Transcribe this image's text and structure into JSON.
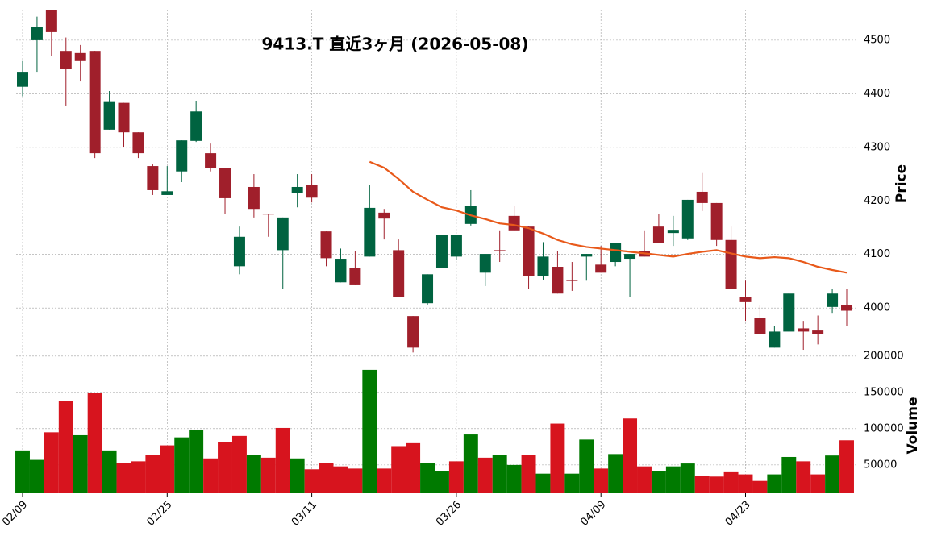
{
  "chart_data": {
    "type": "candlestick",
    "title": "9413.T  直近3ヶ月  (2026-05-08)",
    "categories": [
      "02/09",
      null,
      null,
      null,
      null,
      null,
      null,
      null,
      null,
      null,
      "02/25",
      null,
      null,
      null,
      null,
      null,
      null,
      null,
      null,
      null,
      "03/11",
      null,
      null,
      null,
      null,
      null,
      null,
      null,
      null,
      null,
      "03/26",
      null,
      null,
      null,
      null,
      null,
      null,
      null,
      null,
      null,
      "04/09",
      null,
      null,
      null,
      null,
      null,
      null,
      null,
      null,
      null,
      "04/23",
      null,
      null,
      null,
      null,
      null,
      null,
      null
    ],
    "open": [
      4413,
      4500,
      4556,
      4480,
      4476,
      4480,
      4333,
      4383,
      4328,
      4265,
      4211,
      4255,
      4312,
      4289,
      4261,
      4078,
      4226,
      4176,
      4108,
      4215,
      4230,
      4143,
      4048,
      4074,
      4096,
      4178,
      4108,
      3985,
      4009,
      4074,
      4096,
      4157,
      4066,
      4108,
      4172,
      4152,
      4060,
      4077,
      4052,
      4096,
      4081,
      4086,
      4092,
      4107,
      4152,
      4140,
      4130,
      4217,
      4196,
      4127,
      4021,
      3982,
      3926,
      3956,
      3962,
      3958,
      4002,
      4006
    ],
    "high": [
      4461,
      4544,
      4557,
      4505,
      4491,
      4480,
      4405,
      4383,
      4328,
      4268,
      4265,
      4313,
      4387,
      4307,
      4261,
      4152,
      4250,
      4176,
      4169,
      4250,
      4250,
      4143,
      4111,
      4107,
      4230,
      4185,
      4128,
      3985,
      4063,
      4137,
      4137,
      4220,
      4101,
      4145,
      4191,
      4152,
      4123,
      4107,
      4086,
      4101,
      4116,
      4122,
      4101,
      4145,
      4176,
      4172,
      4202,
      4252,
      4196,
      4152,
      4051,
      4006,
      3967,
      4027,
      3976,
      3986,
      4036,
      4036
    ],
    "low": [
      4395,
      4441,
      4471,
      4378,
      4423,
      4280,
      4333,
      4301,
      4280,
      4211,
      4211,
      4235,
      4310,
      4255,
      4176,
      4063,
      4169,
      4133,
      4035,
      4188,
      4197,
      4078,
      4048,
      4044,
      4096,
      4128,
      4020,
      3917,
      4005,
      4074,
      4090,
      4154,
      4041,
      4086,
      4145,
      4036,
      4053,
      4027,
      4032,
      4051,
      4066,
      4078,
      4021,
      4096,
      4122,
      4116,
      4127,
      4181,
      4116,
      4036,
      3976,
      3952,
      3926,
      3956,
      3922,
      3932,
      3991,
      3967
    ],
    "close": [
      4441,
      4524,
      4515,
      4446,
      4461,
      4289,
      4386,
      4328,
      4289,
      4220,
      4218,
      4313,
      4367,
      4261,
      4205,
      4133,
      4185,
      4175,
      4169,
      4226,
      4206,
      4093,
      4092,
      4044,
      4187,
      4167,
      4020,
      3926,
      4063,
      4137,
      4136,
      4191,
      4101,
      4107,
      4145,
      4060,
      4096,
      4027,
      4051,
      4101,
      4066,
      4122,
      4101,
      4096,
      4122,
      4146,
      4202,
      4196,
      4127,
      4036,
      4011,
      3952,
      3956,
      4027,
      3956,
      3952,
      4027,
      3995
    ],
    "up_color": "#006340",
    "down_color": "#a01f2b",
    "ylim": [
      3913,
      4557
    ],
    "yticks": [
      4000,
      4100,
      4200,
      4300,
      4400,
      4500
    ],
    "ylabel": "Price",
    "grid": true,
    "moving_average": {
      "color": "#e8591a",
      "values": [
        null,
        null,
        null,
        null,
        null,
        null,
        null,
        null,
        null,
        null,
        null,
        null,
        null,
        null,
        null,
        null,
        null,
        null,
        null,
        null,
        null,
        null,
        null,
        null,
        4273,
        4262,
        4241,
        4217,
        4202,
        4188,
        4182,
        4173,
        4166,
        4158,
        4155,
        4149,
        4139,
        4127,
        4119,
        4114,
        4111,
        4108,
        4105,
        4102,
        4099,
        4096,
        4101,
        4105,
        4108,
        4102,
        4096,
        4093,
        4095,
        4093,
        4086,
        4077,
        4071,
        4066
      ]
    },
    "volume": {
      "values": [
        70000,
        57000,
        95000,
        138000,
        91000,
        149000,
        70000,
        53000,
        55000,
        64000,
        77000,
        88000,
        98000,
        59000,
        82000,
        90000,
        64000,
        60000,
        101000,
        59000,
        44000,
        53000,
        48000,
        45000,
        181000,
        45000,
        76000,
        80000,
        53000,
        41000,
        55000,
        92000,
        60000,
        64000,
        50000,
        64000,
        38000,
        107000,
        38000,
        85000,
        45000,
        65000,
        114000,
        48000,
        41000,
        48000,
        52000,
        35000,
        34000,
        40000,
        37000,
        28000,
        37000,
        61000,
        55000,
        37000,
        63000,
        84000
      ],
      "up_color": "#007a00",
      "down_color": "#d7141e",
      "ylim": [
        11000,
        202000
      ],
      "yticks": [
        50000,
        100000,
        150000,
        200000
      ],
      "ylabel": "Volume"
    }
  }
}
